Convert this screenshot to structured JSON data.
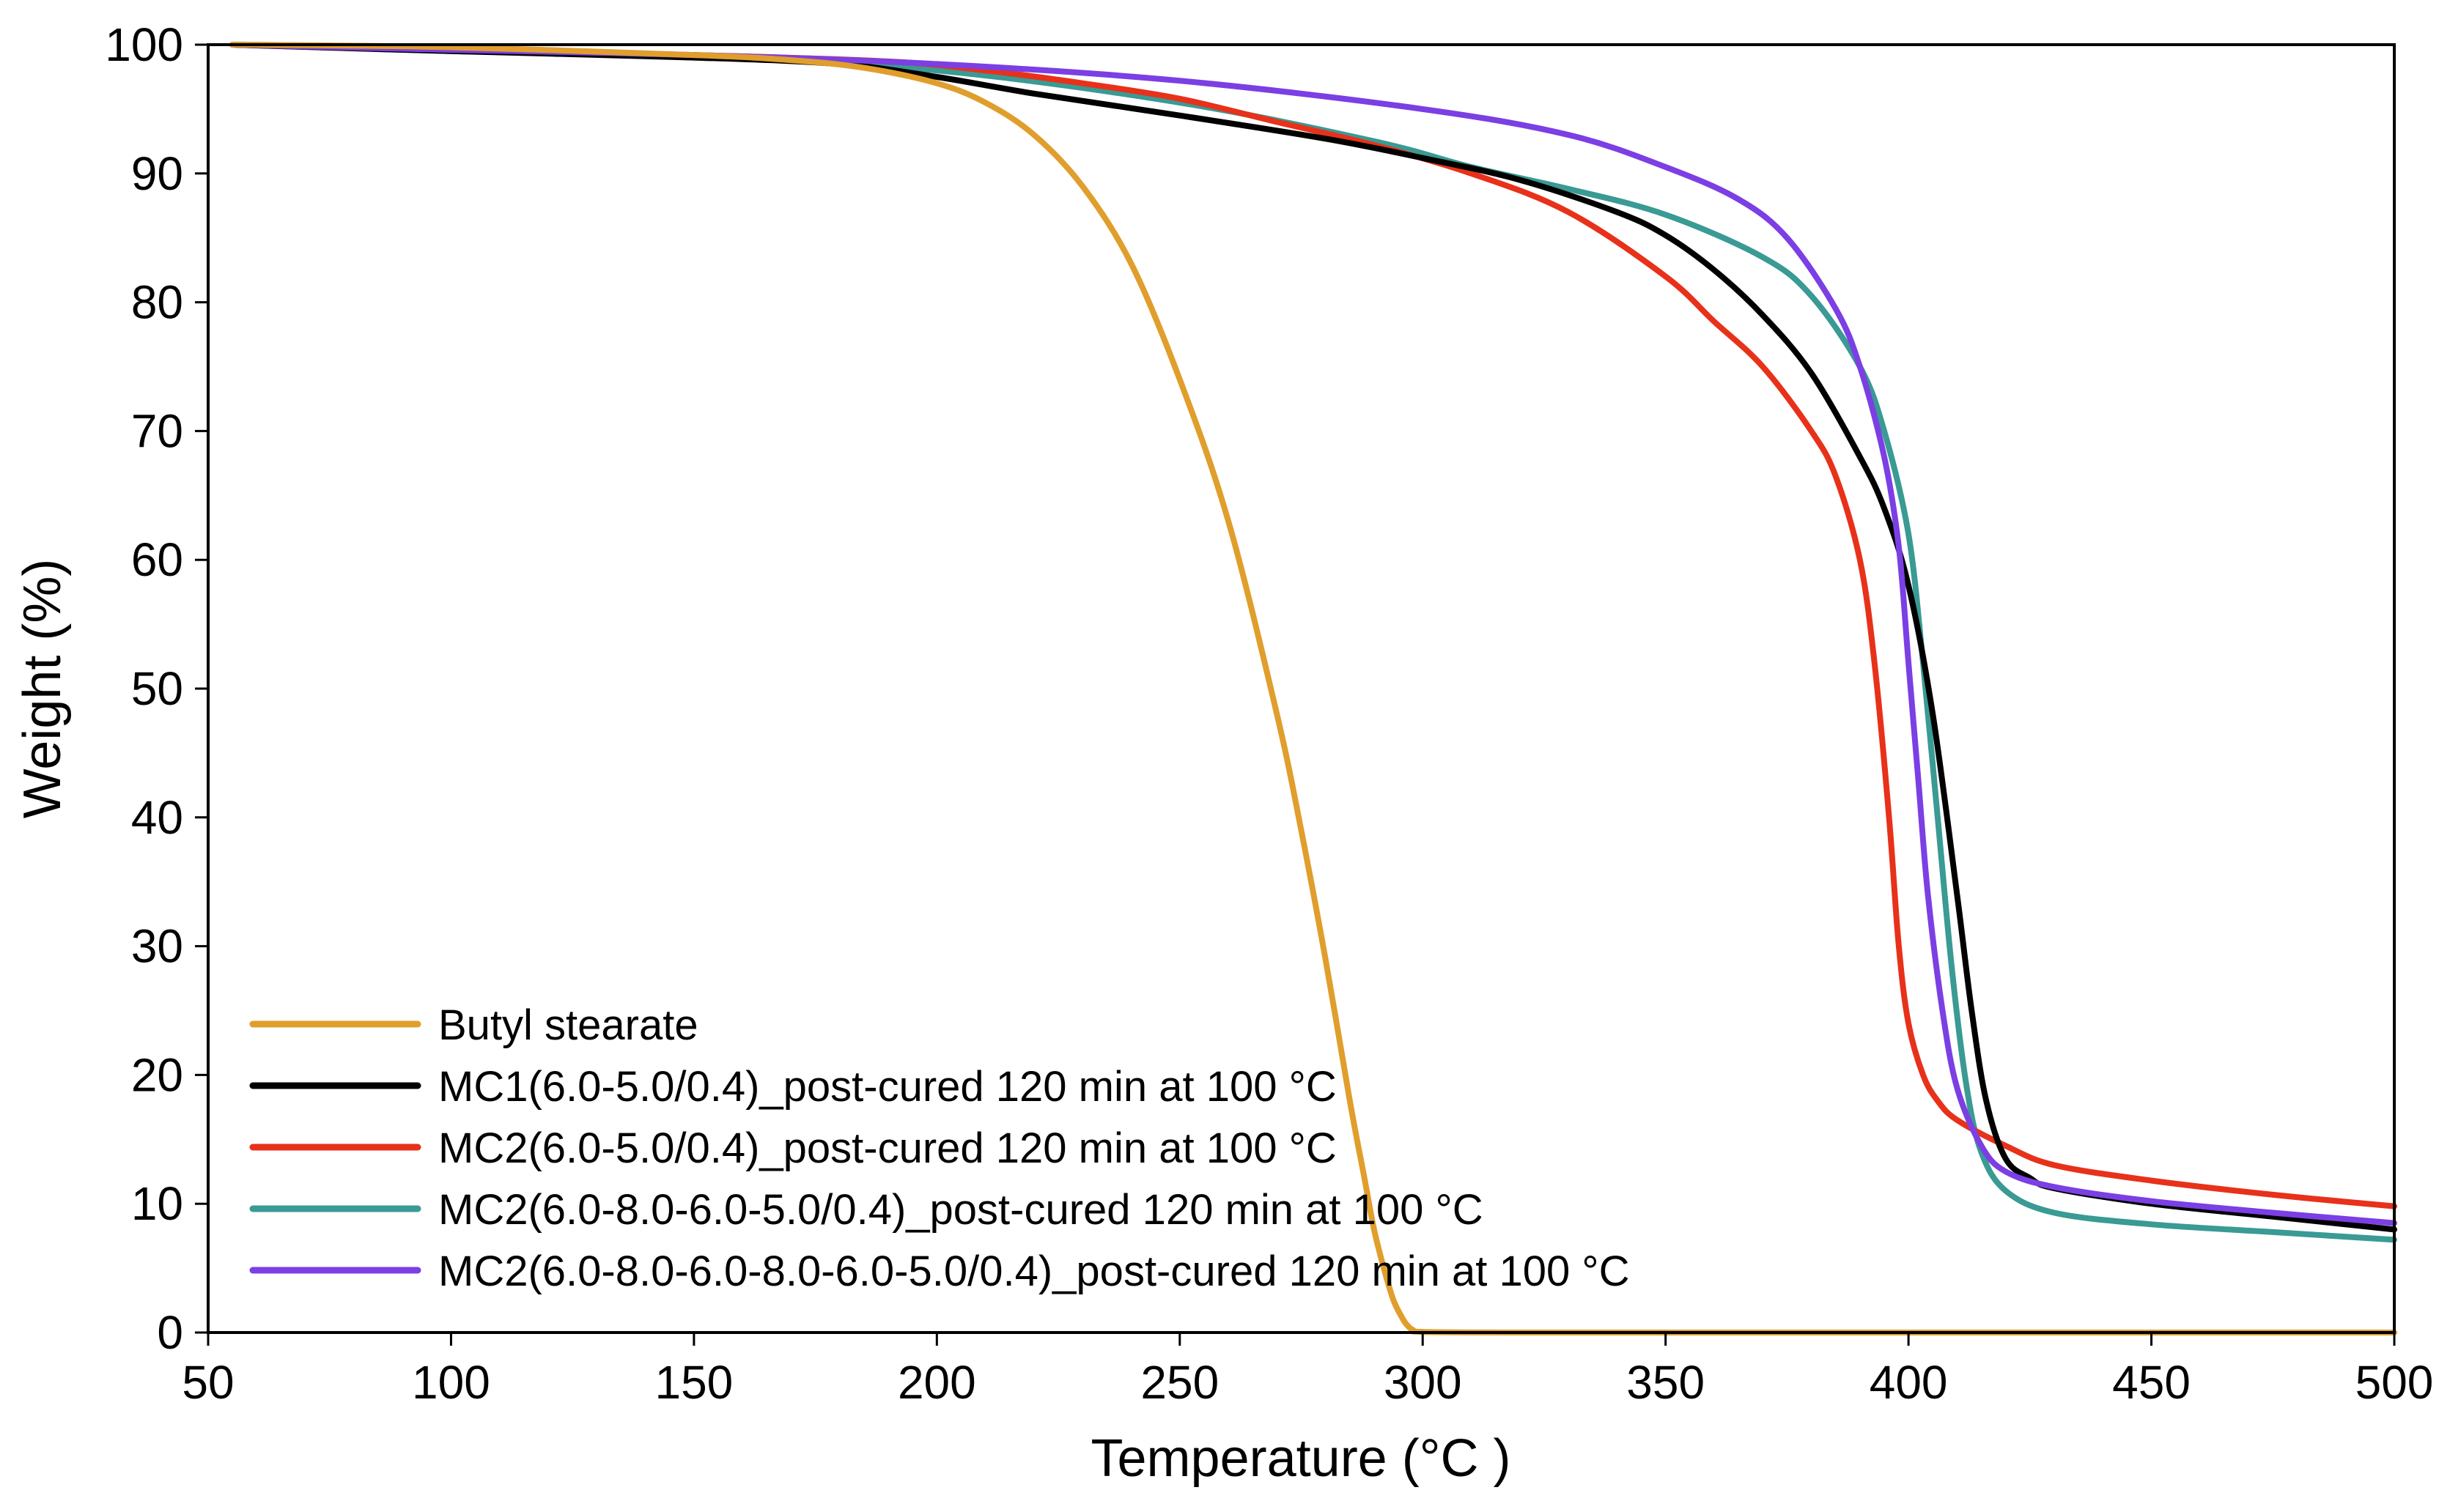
{
  "chart_data": {
    "type": "line",
    "title": "",
    "xlabel": "Temperature (°C )",
    "ylabel": "Weight (%)",
    "xlim": [
      50,
      500
    ],
    "ylim": [
      0,
      100
    ],
    "xticks": [
      50,
      100,
      150,
      200,
      250,
      300,
      350,
      400,
      450,
      500
    ],
    "yticks": [
      0,
      10,
      20,
      30,
      40,
      50,
      60,
      70,
      80,
      90,
      100
    ],
    "grid": false,
    "legend_position": "bottom-left",
    "series": [
      {
        "name": "Butyl stearate",
        "color": "#E09E2C",
        "x": [
          55,
          60,
          100,
          150,
          170,
          185,
          200,
          210,
          220,
          230,
          240,
          250,
          260,
          270,
          275,
          280,
          285,
          288,
          290,
          292,
          294,
          296,
          297,
          298,
          300,
          320,
          350,
          400,
          450,
          500
        ],
        "y": [
          100,
          100,
          99.8,
          99.2,
          98.8,
          98.2,
          97,
          95.5,
          93,
          89,
          83,
          74,
          63,
          48,
          39,
          29,
          18,
          12,
          8,
          5,
          2.5,
          1,
          0.5,
          0.2,
          0.05,
          0,
          0,
          0,
          0,
          0
        ]
      },
      {
        "name": "MC1(6.0-5.0/0.4)_post-cured 120 min at 100 °C",
        "color": "#000000",
        "x": [
          55,
          100,
          150,
          180,
          200,
          220,
          250,
          280,
          300,
          320,
          340,
          350,
          360,
          370,
          380,
          390,
          395,
          400,
          405,
          410,
          413,
          416,
          420,
          425,
          430,
          450,
          475,
          500
        ],
        "y": [
          100,
          99.5,
          99,
          98.5,
          97.5,
          96.2,
          94.5,
          92.7,
          91.2,
          89.5,
          87,
          85.2,
          82.5,
          79,
          74.5,
          68,
          64,
          58,
          48,
          34,
          25,
          18,
          13.5,
          12,
          11.2,
          10,
          9,
          8
        ]
      },
      {
        "name": "MC2(6.0-5.0/0.4)_post-cured 120 min at 100 °C",
        "color": "#E8311A",
        "x": [
          55,
          100,
          150,
          190,
          210,
          230,
          250,
          270,
          290,
          310,
          330,
          350,
          360,
          370,
          380,
          385,
          390,
          393,
          396,
          398,
          400,
          403,
          406,
          410,
          420,
          430,
          450,
          475,
          500
        ],
        "y": [
          100,
          99.6,
          99.2,
          98.7,
          98,
          97,
          95.8,
          94,
          92.2,
          90,
          87,
          82,
          78.5,
          75,
          70,
          66.5,
          60,
          52,
          40,
          30,
          24,
          20,
          18,
          16.5,
          14.5,
          13,
          11.8,
          10.7,
          9.8
        ]
      },
      {
        "name": "MC2(6.0-8.0-6.0-5.0/0.4)_post-cured 120 min at 100 °C",
        "color": "#3A9A94",
        "x": [
          55,
          100,
          150,
          200,
          250,
          290,
          310,
          330,
          350,
          370,
          380,
          390,
          395,
          400,
          403,
          406,
          409,
          412,
          415,
          420,
          430,
          450,
          475,
          500
        ],
        "y": [
          100,
          99.5,
          99.1,
          98,
          95.5,
          92.5,
          90.5,
          88.8,
          86.8,
          83.5,
          80.5,
          75,
          70,
          62,
          52,
          40,
          28,
          19,
          14,
          11,
          9.3,
          8.4,
          7.8,
          7.2
        ]
      },
      {
        "name": "MC2(6.0-8.0-6.0-8.0-6.0-5.0/0.4)_post-cured 120 min at 100 °C",
        "color": "#7B3FE4",
        "x": [
          55,
          100,
          150,
          200,
          250,
          300,
          330,
          350,
          365,
          375,
          385,
          390,
          395,
          398,
          400,
          402,
          404,
          407,
          410,
          415,
          420,
          430,
          450,
          475,
          500
        ],
        "y": [
          100,
          99.6,
          99.2,
          98.5,
          97.2,
          95,
          93,
          90.5,
          88,
          85,
          79.5,
          75,
          68,
          61,
          52,
          43,
          34,
          25,
          19,
          14.5,
          12.5,
          11.3,
          10.2,
          9.3,
          8.5
        ]
      }
    ]
  }
}
